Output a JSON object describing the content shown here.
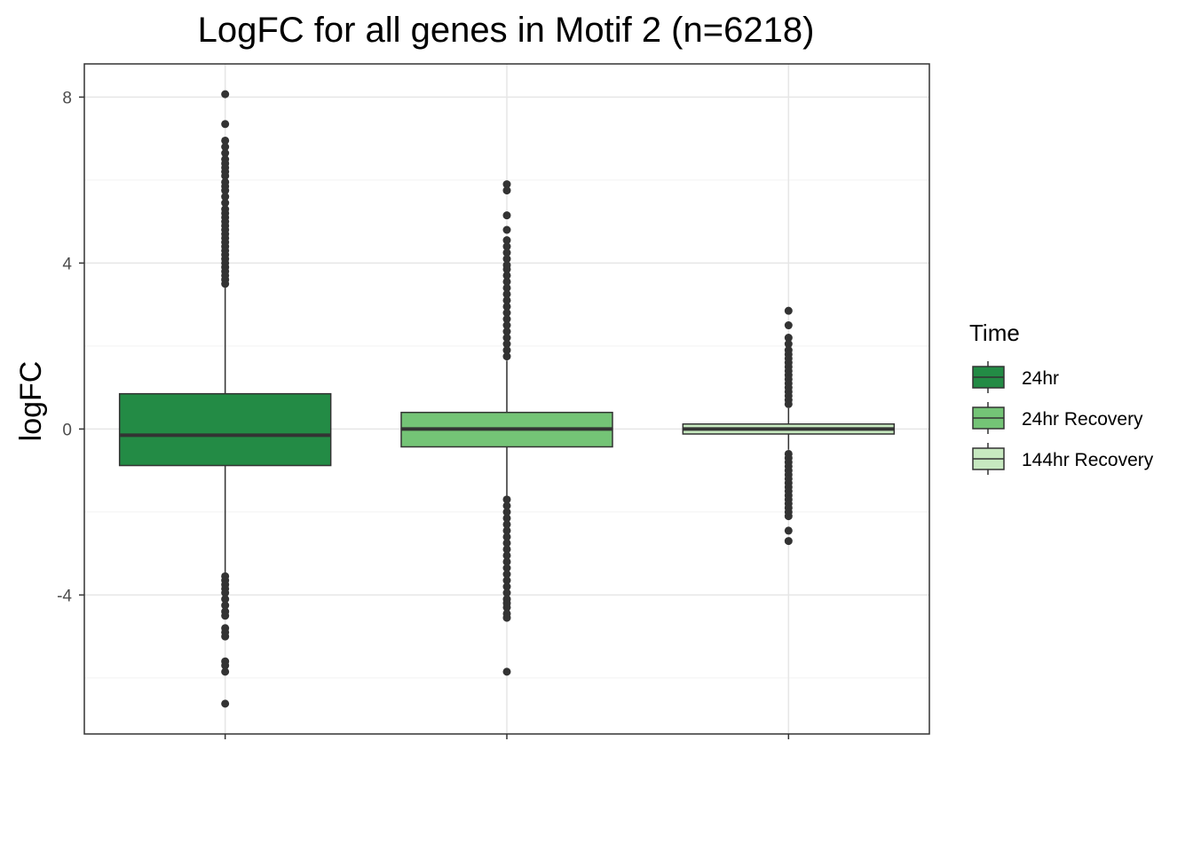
{
  "chart_data": {
    "type": "box",
    "title": "LogFC for all genes in Motif 2 (n=6218)",
    "xlabel": "",
    "ylabel": "logFC",
    "ylim": [
      -7.35,
      8.8
    ],
    "yticks": [
      -4,
      0,
      4,
      8
    ],
    "grid": true,
    "legend_title": "Time",
    "legend_position": "right",
    "series": [
      {
        "name": "24hr",
        "color": "#238b45",
        "min": -6.6,
        "q1": -0.88,
        "median": -0.15,
        "q3": 0.85,
        "max": 8.1,
        "whisker_low": -3.5,
        "whisker_high": 3.45,
        "outliers": [
          8.07,
          7.35,
          6.95,
          6.8,
          6.65,
          6.5,
          6.4,
          6.3,
          6.2,
          6.1,
          5.95,
          5.85,
          5.75,
          5.6,
          5.45,
          5.3,
          5.2,
          5.1,
          5.0,
          4.9,
          4.8,
          4.7,
          4.6,
          4.5,
          4.4,
          4.3,
          4.2,
          4.1,
          4.0,
          3.9,
          3.8,
          3.7,
          3.6,
          3.5,
          -3.55,
          -3.65,
          -3.75,
          -3.85,
          -3.95,
          -4.1,
          -4.25,
          -4.4,
          -4.5,
          -4.8,
          -4.9,
          -5.0,
          -5.6,
          -5.7,
          -5.85,
          -6.62
        ]
      },
      {
        "name": "24hr Recovery",
        "color": "#74c476",
        "min": -5.85,
        "q1": -0.43,
        "median": 0.0,
        "q3": 0.4,
        "max": 5.9,
        "whisker_low": -1.65,
        "whisker_high": 1.65,
        "outliers": [
          5.9,
          5.75,
          5.15,
          4.8,
          4.55,
          4.4,
          4.25,
          4.1,
          3.95,
          3.85,
          3.7,
          3.55,
          3.4,
          3.25,
          3.1,
          2.95,
          2.8,
          2.65,
          2.5,
          2.35,
          2.2,
          2.05,
          1.9,
          1.75,
          -1.7,
          -1.85,
          -2.0,
          -2.15,
          -2.3,
          -2.45,
          -2.6,
          -2.75,
          -2.9,
          -3.05,
          -3.2,
          -3.35,
          -3.5,
          -3.65,
          -3.8,
          -3.95,
          -4.1,
          -4.2,
          -4.3,
          -4.45,
          -4.55,
          -5.85
        ]
      },
      {
        "name": "144hr Recovery",
        "color": "#c7e9c0",
        "min": -2.7,
        "q1": -0.12,
        "median": 0.0,
        "q3": 0.12,
        "max": 2.85,
        "whisker_low": -0.5,
        "whisker_high": 0.5,
        "outliers": [
          2.85,
          2.5,
          2.2,
          2.05,
          1.9,
          1.8,
          1.7,
          1.6,
          1.5,
          1.4,
          1.3,
          1.2,
          1.1,
          1.0,
          0.9,
          0.8,
          0.7,
          0.6,
          -0.6,
          -0.7,
          -0.8,
          -0.9,
          -1.0,
          -1.1,
          -1.2,
          -1.3,
          -1.4,
          -1.5,
          -1.6,
          -1.7,
          -1.8,
          -1.9,
          -2.0,
          -2.1,
          -2.45,
          -2.7
        ]
      }
    ]
  }
}
